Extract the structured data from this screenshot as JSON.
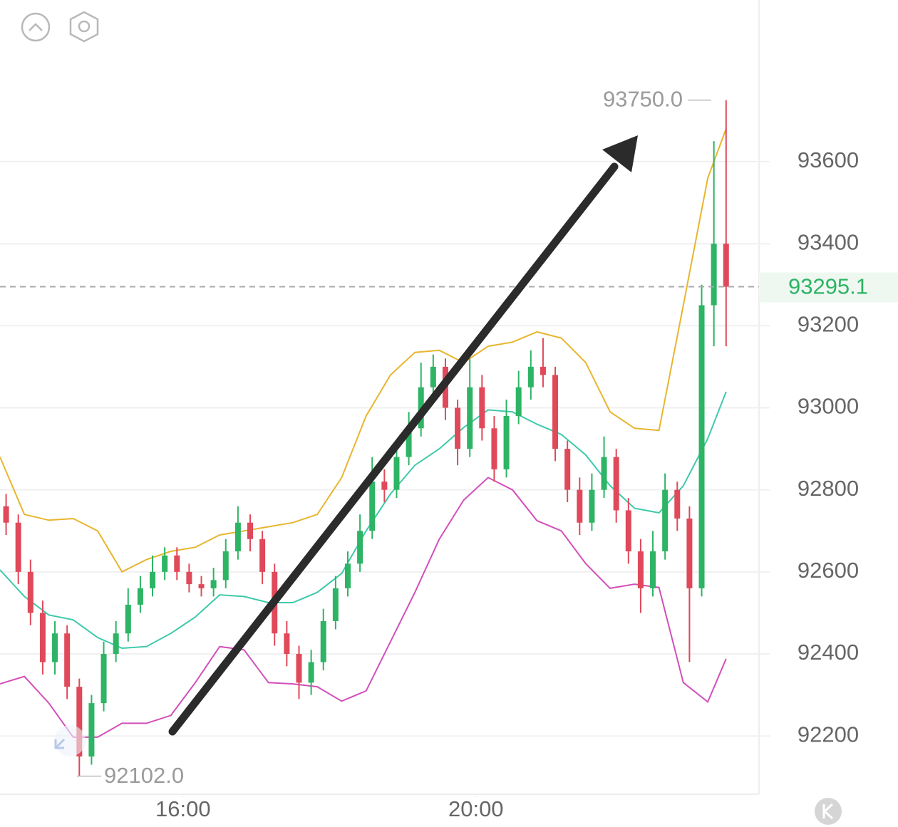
{
  "chart_data": {
    "type": "candlestick",
    "x": [
      815,
      825,
      835,
      845,
      855,
      865,
      875,
      885,
      895,
      905,
      915,
      925,
      935,
      945,
      955,
      965,
      975,
      985,
      995,
      1005,
      1015,
      1025,
      1035,
      1045,
      1055,
      1065,
      1075,
      1085,
      1095,
      1105,
      1115,
      1125,
      1135,
      1145,
      1155,
      1165,
      1175,
      1185,
      1195,
      1205,
      1215,
      1225,
      1235,
      1245,
      1255,
      1265,
      1275,
      1285,
      1295,
      1305,
      1315,
      1325,
      1335,
      1345,
      1355,
      1365,
      1375,
      1385,
      1395,
      1405
    ],
    "open": [
      92760,
      92720,
      92600,
      92500,
      92380,
      92450,
      92320,
      92150,
      92280,
      92400,
      92450,
      92520,
      92560,
      92600,
      92640,
      92600,
      92570,
      92560,
      92580,
      92650,
      92720,
      92680,
      92600,
      92450,
      92400,
      92330,
      92380,
      92480,
      92560,
      92620,
      92700,
      92820,
      92800,
      92880,
      92950,
      93050,
      93100,
      93000,
      92900,
      93050,
      92950,
      92850,
      92980,
      93050,
      93100,
      93080,
      92900,
      92800,
      92720,
      92800,
      92880,
      92750,
      92650,
      92560,
      92650,
      92800,
      92730,
      92560,
      93250,
      93400
    ],
    "high": [
      92790,
      92740,
      92630,
      92530,
      92480,
      92470,
      92340,
      92300,
      92430,
      92480,
      92560,
      92590,
      92640,
      92660,
      92660,
      92620,
      92590,
      92610,
      92680,
      92760,
      92740,
      92700,
      92620,
      92480,
      92420,
      92410,
      92510,
      92590,
      92650,
      92740,
      92880,
      92850,
      92910,
      92990,
      93110,
      93130,
      93120,
      93020,
      93120,
      93080,
      92980,
      93020,
      93090,
      93140,
      93170,
      93100,
      92920,
      92830,
      92840,
      92930,
      92900,
      92780,
      92680,
      92700,
      92840,
      92820,
      92760,
      93300,
      93650,
      93750
    ],
    "low": [
      92690,
      92570,
      92470,
      92350,
      92350,
      92290,
      92102,
      92130,
      92260,
      92380,
      92430,
      92500,
      92540,
      92580,
      92580,
      92550,
      92540,
      92540,
      92560,
      92630,
      92650,
      92570,
      92420,
      92370,
      92290,
      92300,
      92360,
      92460,
      92540,
      92600,
      92680,
      92770,
      92780,
      92860,
      92930,
      93020,
      92970,
      92860,
      92880,
      92920,
      92820,
      92830,
      92960,
      93020,
      93050,
      92870,
      92770,
      92690,
      92700,
      92780,
      92720,
      92620,
      92500,
      92540,
      92630,
      92700,
      92380,
      92540,
      93150,
      93150
    ],
    "close": [
      92720,
      92600,
      92500,
      92380,
      92450,
      92320,
      92150,
      92280,
      92400,
      92450,
      92520,
      92560,
      92600,
      92640,
      92600,
      92570,
      92560,
      92580,
      92650,
      92720,
      92680,
      92600,
      92450,
      92400,
      92330,
      92380,
      92480,
      92560,
      92620,
      92700,
      92820,
      92800,
      92880,
      92950,
      93050,
      93100,
      93000,
      92900,
      93050,
      92950,
      92850,
      92980,
      93050,
      93100,
      93080,
      92900,
      92800,
      92720,
      92800,
      92880,
      92750,
      92650,
      92560,
      92650,
      92800,
      92730,
      92560,
      93250,
      93400,
      93295.1
    ],
    "up_color": "#2db464",
    "down_color": "#e0495a",
    "lines": [
      {
        "color": "#e8b52e",
        "x": [
          810,
          830,
          850,
          870,
          890,
          910,
          930,
          950,
          970,
          990,
          1010,
          1030,
          1050,
          1070,
          1090,
          1110,
          1130,
          1150,
          1170,
          1190,
          1210,
          1230,
          1250,
          1270,
          1290,
          1310,
          1330,
          1350,
          1370,
          1390,
          1405
        ],
        "values": [
          92880,
          92740,
          92726,
          92730,
          92700,
          92600,
          92630,
          92650,
          92660,
          92690,
          92700,
          92710,
          92720,
          92740,
          92830,
          92980,
          93080,
          93135,
          93140,
          93110,
          93150,
          93160,
          93185,
          93170,
          93110,
          92990,
          92950,
          92945,
          93250,
          93560,
          93680
        ]
      },
      {
        "color": "#3ec9aa",
        "x": [
          810,
          830,
          850,
          870,
          890,
          910,
          930,
          950,
          970,
          990,
          1010,
          1030,
          1050,
          1070,
          1090,
          1110,
          1130,
          1150,
          1170,
          1190,
          1210,
          1230,
          1250,
          1270,
          1290,
          1310,
          1330,
          1350,
          1370,
          1390,
          1405
        ],
        "values": [
          92605,
          92540,
          92495,
          92483,
          92440,
          92414,
          92418,
          92450,
          92490,
          92544,
          92540,
          92525,
          92525,
          92550,
          92596,
          92700,
          92790,
          92860,
          92900,
          92952,
          92995,
          92990,
          92960,
          92935,
          92885,
          92810,
          92755,
          92744,
          92810,
          92925,
          93039
        ]
      },
      {
        "color": "#d24fba",
        "x": [
          810,
          830,
          850,
          870,
          890,
          910,
          930,
          950,
          970,
          990,
          1010,
          1030,
          1050,
          1070,
          1090,
          1110,
          1130,
          1150,
          1170,
          1190,
          1210,
          1230,
          1250,
          1270,
          1290,
          1310,
          1330,
          1350,
          1370,
          1390,
          1405
        ],
        "values": [
          92327,
          92345,
          92280,
          92197,
          92197,
          92231,
          92231,
          92250,
          92330,
          92418,
          92410,
          92330,
          92327,
          92320,
          92285,
          92310,
          92430,
          92550,
          92680,
          92775,
          92830,
          92800,
          92725,
          92700,
          92620,
          92560,
          92570,
          92562,
          92330,
          92283,
          92388
        ]
      }
    ],
    "xlim": [
      810,
      1432
    ],
    "ylim": [
      92058,
      93994
    ],
    "xticks": [
      {
        "value": 960,
        "label": "16:00"
      },
      {
        "value": 1200,
        "label": "20:00"
      }
    ],
    "yticks": [
      92200,
      92400,
      92600,
      92800,
      93000,
      93200,
      93400,
      93600
    ],
    "grid": true,
    "last_price": 93295.1,
    "high_marker": {
      "value": 93750,
      "label": "93750.0"
    },
    "low_marker": {
      "value": 92102,
      "label": "92102.0"
    }
  }
}
